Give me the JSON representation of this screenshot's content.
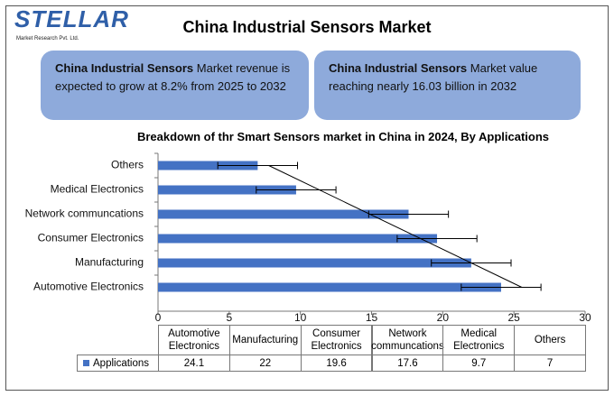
{
  "header": {
    "logo": "STELLAR",
    "logo_sub": "Market Research Pvt. Ltd.",
    "title": "China Industrial Sensors Market"
  },
  "boxes": [
    {
      "bold": "China Industrial Sensors",
      "text": "Market revenue is expected to grow at 8.2% from 2025 to 2032"
    },
    {
      "bold": "China Industrial Sensors",
      "text": "Market value reaching nearly 16.03 billion in 2032"
    }
  ],
  "chart_data": {
    "type": "bar",
    "orientation": "horizontal",
    "title": "Breakdown of thr Smart Sensors market in China in 2024, By Applications",
    "categories": [
      "Automotive Electronics",
      "Manufacturing",
      "Consumer Electronics",
      "Network communcations",
      "Medical Electronics",
      "Others"
    ],
    "series": [
      {
        "name": "Applications",
        "color": "#4472c4",
        "values": [
          24.1,
          22,
          19.6,
          17.6,
          9.7,
          7
        ],
        "errors": [
          2.8,
          2.8,
          2.8,
          2.8,
          2.8,
          2.8
        ]
      }
    ],
    "xlim": [
      0,
      30
    ],
    "xticks": [
      0,
      5,
      10,
      15,
      20,
      25,
      30
    ],
    "trendline": "linear",
    "data_table": true
  }
}
